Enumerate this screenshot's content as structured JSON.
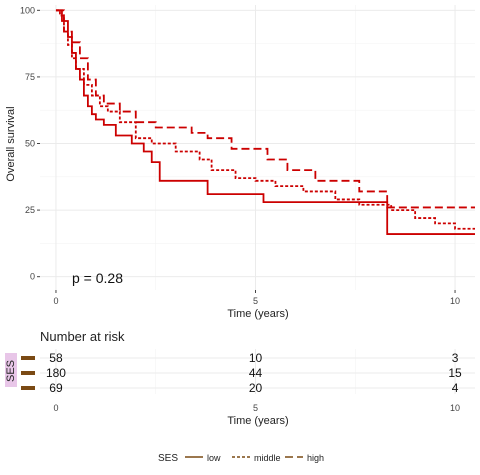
{
  "chart_data": [
    {
      "type": "line",
      "subtype": "kaplan-meier step",
      "ylabel": "Overall survival",
      "xlabel": "Time (years)",
      "xlim": [
        -0.4,
        10.5
      ],
      "ylim": [
        -5,
        102
      ],
      "x_ticks": [
        0,
        5,
        10
      ],
      "y_ticks": [
        0,
        25,
        50,
        75,
        100
      ],
      "grid": true,
      "annotation": "p = 0.28",
      "legend_title": "SES",
      "legend_position": "bottom",
      "series": [
        {
          "name": "low",
          "color": "#cc0000",
          "dash": "solid",
          "x": [
            0,
            0.15,
            0.3,
            0.4,
            0.5,
            0.6,
            0.7,
            0.8,
            0.9,
            1.0,
            1.2,
            1.5,
            1.9,
            2.2,
            2.4,
            2.6,
            3.8,
            5.2,
            8.3,
            10.5
          ],
          "y": [
            100,
            96,
            90,
            84,
            78,
            74,
            68,
            64,
            61,
            59,
            57,
            53,
            50,
            47,
            43,
            36,
            31,
            28,
            16,
            16
          ]
        },
        {
          "name": "middle",
          "color": "#cc0000",
          "dash": "dotted",
          "x": [
            0,
            0.1,
            0.2,
            0.3,
            0.4,
            0.5,
            0.7,
            0.9,
            1.1,
            1.3,
            1.6,
            2.0,
            2.4,
            3.0,
            3.6,
            3.9,
            4.5,
            5.0,
            5.5,
            6.2,
            7.0,
            7.6,
            8.4,
            9.0,
            9.5,
            10.0,
            10.5
          ],
          "y": [
            100,
            98,
            92,
            87,
            82,
            78,
            72,
            68,
            64,
            62,
            58,
            52,
            50,
            47,
            44,
            40,
            37,
            36,
            34,
            32,
            29,
            27,
            25,
            22,
            20,
            18,
            18
          ]
        },
        {
          "name": "high",
          "color": "#cc0000",
          "dash": "dashed",
          "x": [
            0,
            0.2,
            0.4,
            0.6,
            0.8,
            1.0,
            1.2,
            1.6,
            2.0,
            2.5,
            3.4,
            3.8,
            4.4,
            5.3,
            5.8,
            6.5,
            7.6,
            8.3,
            10.5
          ],
          "y": [
            100,
            92,
            88,
            82,
            74,
            68,
            65,
            62,
            58,
            56,
            54,
            52,
            48,
            44,
            40,
            36,
            32,
            26,
            26
          ]
        }
      ]
    },
    {
      "type": "table",
      "title": "Number at risk",
      "ylabel": "SES",
      "xlabel": "Time (years)",
      "x_ticks": [
        0,
        5,
        10
      ],
      "rows": [
        {
          "name": "low",
          "values": [
            58,
            10,
            3
          ]
        },
        {
          "name": "middle",
          "values": [
            180,
            44,
            15
          ]
        },
        {
          "name": "high",
          "values": [
            69,
            20,
            4
          ]
        }
      ]
    }
  ],
  "legend": {
    "title": "SES",
    "items": [
      {
        "label": "low",
        "dash": "solid"
      },
      {
        "label": "middle",
        "dash": "dotted"
      },
      {
        "label": "high",
        "dash": "dashed"
      }
    ]
  },
  "colors": {
    "line": "#cc0000",
    "grid": "#ebebeb",
    "key": "#7a4a14",
    "ses_label_bg": "#e8c6e8"
  }
}
